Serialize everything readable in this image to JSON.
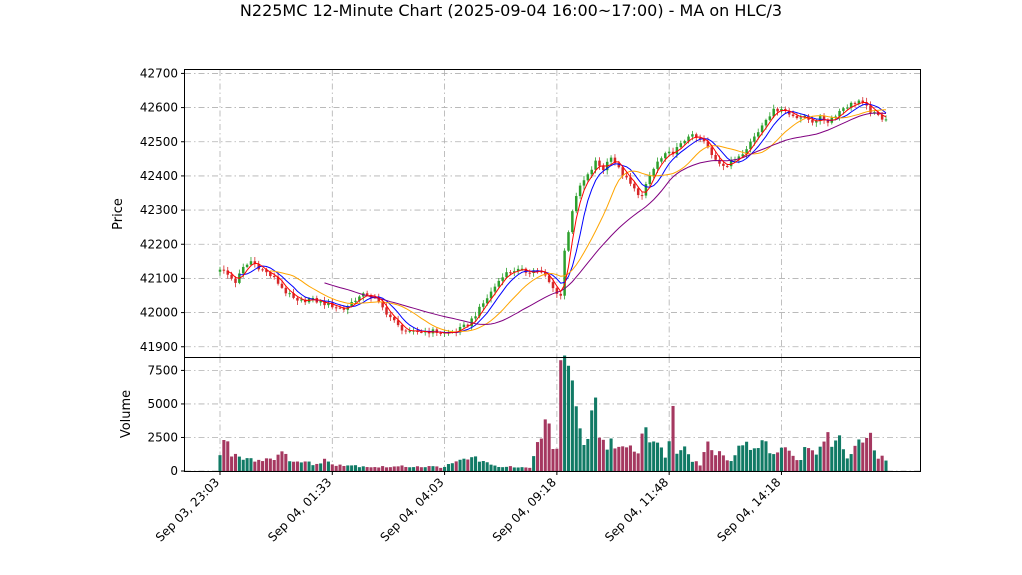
{
  "chart_data": [
    {
      "type": "candlestick",
      "title": "N225MC 12-Minute Chart (2025-09-04 16:00~17:00) - MA on HLC/3",
      "ylabel": "Price",
      "ylim": [
        41870,
        42710
      ],
      "yticks": [
        41900,
        42000,
        42100,
        42200,
        42300,
        42400,
        42500,
        42600,
        42700
      ],
      "grid": true,
      "up_color": "#2ca02c",
      "down_color": "#d62728",
      "anchors": [
        [
          0,
          42130
        ],
        [
          2,
          42110
        ],
        [
          4,
          42090
        ],
        [
          6,
          42130
        ],
        [
          8,
          42150
        ],
        [
          11,
          42125
        ],
        [
          14,
          42100
        ],
        [
          17,
          42060
        ],
        [
          20,
          42030
        ],
        [
          23,
          42040
        ],
        [
          26,
          42030
        ],
        [
          29,
          42020
        ],
        [
          32,
          42010
        ],
        [
          35,
          42040
        ],
        [
          38,
          42055
        ],
        [
          40,
          42040
        ],
        [
          43,
          42000
        ],
        [
          46,
          41960
        ],
        [
          49,
          41940
        ],
        [
          52,
          41945
        ],
        [
          55,
          41945
        ],
        [
          58,
          41940
        ],
        [
          61,
          41945
        ],
        [
          64,
          41965
        ],
        [
          67,
          42010
        ],
        [
          70,
          42060
        ],
        [
          73,
          42110
        ],
        [
          76,
          42125
        ],
        [
          79,
          42120
        ],
        [
          82,
          42125
        ],
        [
          84,
          42105
        ],
        [
          86,
          42070
        ],
        [
          88,
          42050
        ],
        [
          89,
          42180
        ],
        [
          91,
          42300
        ],
        [
          93,
          42370
        ],
        [
          95,
          42400
        ],
        [
          97,
          42440
        ],
        [
          99,
          42420
        ],
        [
          101,
          42460
        ],
        [
          103,
          42420
        ],
        [
          105,
          42390
        ],
        [
          107,
          42360
        ],
        [
          109,
          42340
        ],
        [
          111,
          42400
        ],
        [
          113,
          42440
        ],
        [
          115,
          42460
        ],
        [
          117,
          42470
        ],
        [
          119,
          42490
        ],
        [
          121,
          42520
        ],
        [
          123,
          42510
        ],
        [
          125,
          42500
        ],
        [
          127,
          42460
        ],
        [
          129,
          42440
        ],
        [
          131,
          42430
        ],
        [
          133,
          42450
        ],
        [
          135,
          42470
        ],
        [
          137,
          42500
        ],
        [
          139,
          42530
        ],
        [
          141,
          42570
        ],
        [
          143,
          42590
        ],
        [
          145,
          42600
        ],
        [
          147,
          42580
        ],
        [
          149,
          42575
        ],
        [
          151,
          42570
        ],
        [
          153,
          42560
        ],
        [
          155,
          42570
        ],
        [
          157,
          42560
        ],
        [
          159,
          42580
        ],
        [
          161,
          42600
        ],
        [
          163,
          42610
        ],
        [
          165,
          42620
        ],
        [
          167,
          42600
        ],
        [
          169,
          42580
        ],
        [
          171,
          42570
        ]
      ],
      "moving_averages": [
        {
          "color": "#0000ff",
          "window": 6
        },
        {
          "color": "#ffa500",
          "window": 14
        },
        {
          "color": "#800080",
          "window": 28
        },
        {
          "color": "#ff0000",
          "window": 3
        }
      ]
    },
    {
      "type": "bar",
      "ylabel": "Volume",
      "ylim": [
        0,
        8500
      ],
      "yticks": [
        0,
        2500,
        5000,
        7500
      ],
      "x_ticks": [
        {
          "index": 0,
          "label": "Sep 03, 23:03"
        },
        {
          "index": 29,
          "label": "Sep 04, 01:33"
        },
        {
          "index": 58,
          "label": "Sep 04, 04:03"
        },
        {
          "index": 87,
          "label": "Sep 04, 09:18"
        },
        {
          "index": 116,
          "label": "Sep 04, 11:48"
        },
        {
          "index": 145,
          "label": "Sep 04, 14:18"
        }
      ],
      "n_bars": 173,
      "profile": [
        [
          0,
          1100
        ],
        [
          1,
          2500
        ],
        [
          3,
          1300
        ],
        [
          10,
          800
        ],
        [
          16,
          1200
        ],
        [
          20,
          700
        ],
        [
          26,
          500
        ],
        [
          27,
          900
        ],
        [
          30,
          500
        ],
        [
          40,
          300
        ],
        [
          50,
          350
        ],
        [
          57,
          300
        ],
        [
          60,
          500
        ],
        [
          63,
          900
        ],
        [
          66,
          1000
        ],
        [
          70,
          400
        ],
        [
          80,
          200
        ],
        [
          85,
          4300
        ],
        [
          86,
          1500
        ],
        [
          87,
          2200
        ],
        [
          88,
          8200
        ],
        [
          89,
          7200
        ],
        [
          90,
          6600
        ],
        [
          91,
          5800
        ],
        [
          92,
          4500
        ],
        [
          93,
          2800
        ],
        [
          95,
          2200
        ],
        [
          97,
          6300
        ],
        [
          98,
          2700
        ],
        [
          100,
          1800
        ],
        [
          102,
          2100
        ],
        [
          104,
          1600
        ],
        [
          106,
          2100
        ],
        [
          108,
          1400
        ],
        [
          110,
          4300
        ],
        [
          111,
          2500
        ],
        [
          113,
          1800
        ],
        [
          115,
          1300
        ],
        [
          117,
          4300
        ],
        [
          118,
          1300
        ],
        [
          120,
          2300
        ],
        [
          122,
          900
        ],
        [
          124,
          500
        ],
        [
          126,
          2000
        ],
        [
          128,
          1500
        ],
        [
          130,
          1200
        ],
        [
          132,
          900
        ],
        [
          134,
          1600
        ],
        [
          136,
          2500
        ],
        [
          138,
          1400
        ],
        [
          140,
          2100
        ],
        [
          142,
          1600
        ],
        [
          144,
          1200
        ],
        [
          146,
          1900
        ],
        [
          148,
          1300
        ],
        [
          150,
          800
        ],
        [
          152,
          2100
        ],
        [
          154,
          1000
        ],
        [
          156,
          2800
        ],
        [
          157,
          3600
        ],
        [
          158,
          1500
        ],
        [
          160,
          2700
        ],
        [
          162,
          900
        ],
        [
          164,
          1600
        ],
        [
          166,
          2400
        ],
        [
          168,
          2300
        ],
        [
          170,
          1000
        ],
        [
          172,
          900
        ]
      ]
    }
  ]
}
